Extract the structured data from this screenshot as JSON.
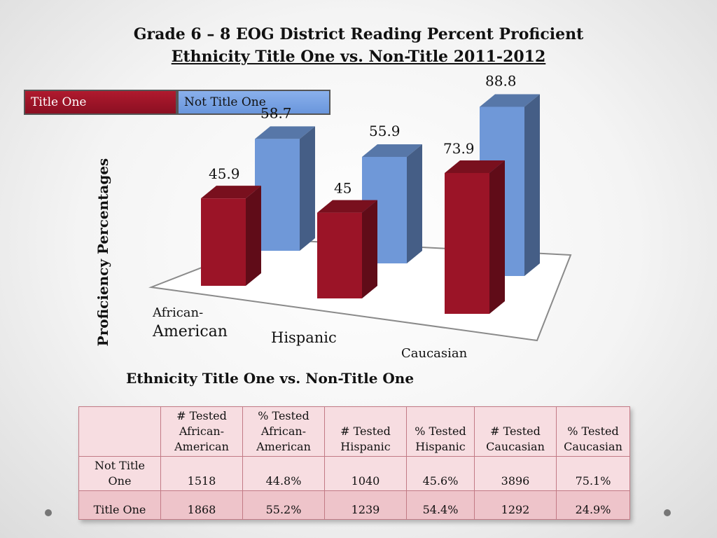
{
  "title_line1": "Grade 6 – 8 EOG District Reading Percent Proficient",
  "title_line2": " Ethnicity Title One vs. Non-Title 2011-2012",
  "chart_data": {
    "type": "bar",
    "categories": [
      "African-\nAmerican",
      "Hispanic",
      "Caucasian"
    ],
    "series": [
      {
        "name": "Title One",
        "values": [
          45.9,
          45,
          73.9
        ],
        "color": "#9b1427"
      },
      {
        "name": "Not Title One",
        "values": [
          58.7,
          55.9,
          88.8
        ],
        "color": "#6f98d8"
      }
    ],
    "ylabel": "Proficiency Percentages",
    "legend_placement": "top-left",
    "grid": false,
    "three_d": true
  },
  "legend": {
    "title_one": "Title One",
    "not_title_one": "Not Title One"
  },
  "table": {
    "title": "Ethnicity Title One vs. Non-Title One",
    "headers": [
      "",
      "#  Tested African-American",
      "% Tested African-American",
      "#  Tested Hispanic",
      "%  Tested Hispanic",
      "#  Tested Caucasian",
      "%  Tested Caucasian"
    ],
    "rows": [
      {
        "label": "Not Title One",
        "values": [
          "1518",
          "44.8%",
          "1040",
          "45.6%",
          "3896",
          "75.1%"
        ]
      },
      {
        "label": "Title One",
        "values": [
          "1868",
          "55.2%",
          "1239",
          "54.4%",
          "1292",
          "24.9%"
        ]
      }
    ]
  }
}
